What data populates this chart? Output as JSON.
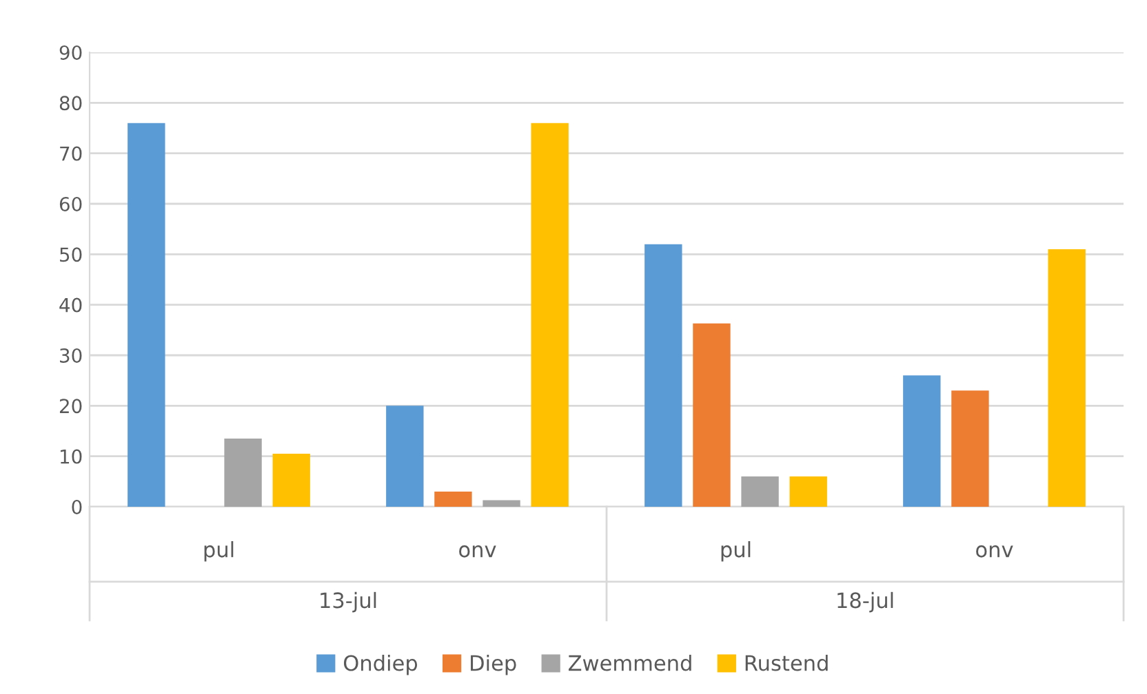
{
  "chart_data": {
    "type": "bar",
    "categories": [
      "pul",
      "onv",
      "pul",
      "onv"
    ],
    "series": [
      {
        "name": "Ondiep",
        "color": "#5b9bd5",
        "values": [
          76,
          20,
          52,
          26
        ]
      },
      {
        "name": "Diep",
        "color": "#ed7d31",
        "values": [
          0,
          3,
          36.3,
          23
        ]
      },
      {
        "name": "Zwemmend",
        "color": "#a5a5a5",
        "values": [
          13.5,
          1.3,
          6,
          0
        ]
      },
      {
        "name": "Rustend",
        "color": "#ffc000",
        "values": [
          10.5,
          76,
          6,
          51
        ]
      }
    ],
    "annotations": [
      "13-jul",
      "18-jul"
    ],
    "ylim": [
      0,
      90
    ],
    "yticks": [
      0,
      10,
      20,
      30,
      40,
      50,
      60,
      70,
      80,
      90
    ],
    "grid": "y",
    "legend": "bottom"
  }
}
